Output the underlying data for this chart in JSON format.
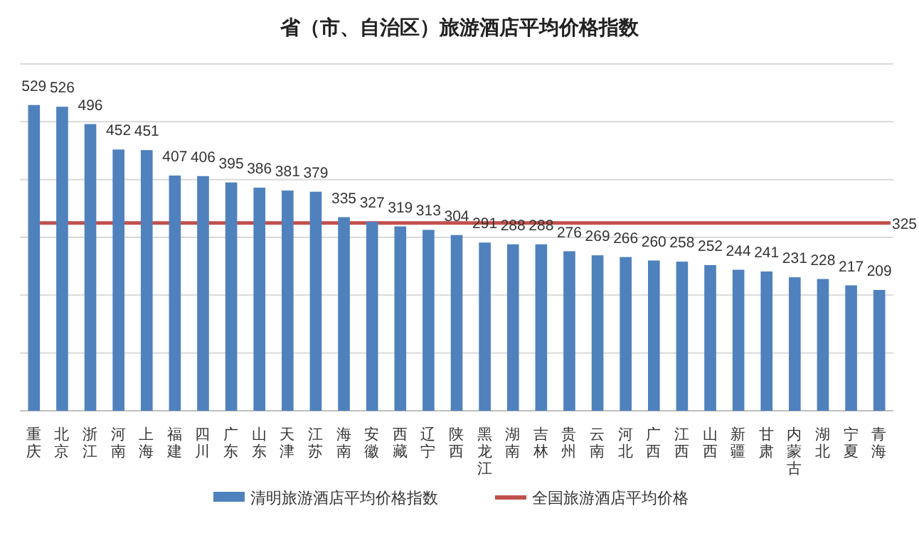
{
  "chart_data": {
    "type": "bar",
    "title": "省（市、自治区）旅游酒店平均价格指数",
    "categories": [
      "重庆",
      "北京",
      "浙江",
      "河南",
      "上海",
      "福建",
      "四川",
      "广东",
      "山东",
      "天津",
      "江苏",
      "海南",
      "安徽",
      "西藏",
      "辽宁",
      "陕西",
      "黑龙江",
      "湖南",
      "吉林",
      "贵州",
      "云南",
      "河北",
      "广西",
      "江西",
      "山西",
      "新疆",
      "甘肃",
      "内蒙古",
      "湖北",
      "宁夏",
      "青海"
    ],
    "series": [
      {
        "name": "清明旅游酒店平均价格指数",
        "color": "#4f81bd",
        "values": [
          529,
          526,
          496,
          452,
          451,
          407,
          406,
          395,
          386,
          381,
          379,
          335,
          327,
          319,
          313,
          304,
          291,
          288,
          288,
          276,
          269,
          266,
          260,
          258,
          252,
          244,
          241,
          231,
          228,
          217,
          209
        ]
      }
    ],
    "ylim": [
      0,
      600
    ],
    "yticks": [
      {
        "value": 0,
        "label": null
      },
      {
        "value": 100,
        "label": null
      },
      {
        "value": 200,
        "label": null
      },
      {
        "value": 300,
        "label": null
      },
      {
        "value": 400,
        "label": null
      },
      {
        "value": 500,
        "label": null
      },
      {
        "value": 600,
        "label": null
      }
    ],
    "annotations": [
      {
        "text": "325",
        "x": "青海",
        "y": 325
      }
    ],
    "grid": "y",
    "data_labels": true,
    "legend": "bottom",
    "ref_lines": [
      {
        "axis": "y",
        "value": 325,
        "label": "全国旅游酒店平均价格",
        "color": "#c0504d",
        "line_style": "solid"
      }
    ]
  }
}
